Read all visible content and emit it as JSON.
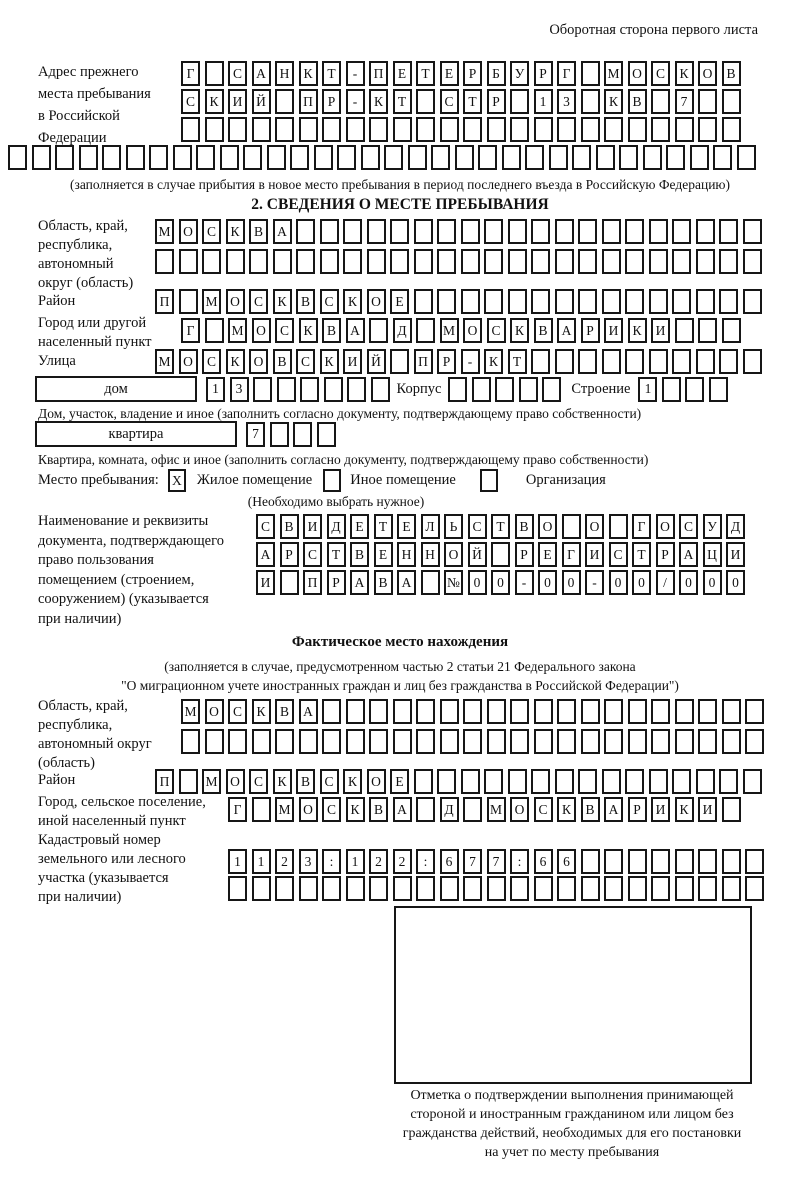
{
  "page_note": "Оборотная сторона первого листа",
  "prev_address": {
    "label": "Адрес прежнего\nместа пребывания\nв Российской\nФедерации",
    "row1": {
      "text": "Г САНКТ-ПЕТЕРБУРГ МОСКОВ",
      "len": 24
    },
    "row2": {
      "text": "СКИЙ ПР-КТ СТР 13 КВ 7",
      "len": 24
    },
    "row3": {
      "text": "",
      "len": 24
    },
    "row4": {
      "text": "",
      "len": 32
    },
    "note": "(заполняется в случае прибытия в новое место пребывания в период последнего въезда в Российскую Федерацию)"
  },
  "section2": {
    "title": "2. СВЕДЕНИЯ О МЕСТЕ ПРЕБЫВАНИЯ",
    "oblast": {
      "label": "Область, край,\nреспублика,\nавтономный\nокруг (область)",
      "row1": {
        "text": "МОСКВА",
        "len": 26
      },
      "row2": {
        "text": "",
        "len": 26
      }
    },
    "raion": {
      "label": "Район",
      "row": {
        "text": "П МОСКВСКОЕ",
        "len": 26
      }
    },
    "gorod": {
      "label": "Город или другой\nнаселенный пункт",
      "row": {
        "text": "Г МОСКВА Д МОСКВАРИКИ",
        "len": 24
      }
    },
    "ulitsa": {
      "label": "Улица",
      "row": {
        "text": "МОСКОВСКИЙ ПР-КТ",
        "len": 26
      }
    },
    "dom": {
      "label": "дом",
      "cells": {
        "text": "13",
        "len": 8
      },
      "korpus_label": "Корпус",
      "korpus_cells": {
        "text": "",
        "len": 5
      },
      "stroenie_label": "Строение",
      "stroenie_cells": {
        "text": "1",
        "len": 4
      },
      "note": "Дом, участок, владение и иное (заполнить согласно документу, подтверждающему право собственности)"
    },
    "kvartira": {
      "label": "квартира",
      "cells": {
        "text": "7",
        "len": 4
      },
      "note": "Квартира, комната, офис и иное (заполнить согласно документу, подтверждающему право собственности)"
    },
    "place_type": {
      "label": "Место пребывания:",
      "options": [
        {
          "label": "Жилое помещение",
          "checked": "X"
        },
        {
          "label": "Иное помещение",
          "checked": ""
        },
        {
          "label": "Организация",
          "checked": ""
        }
      ],
      "note": "(Необходимо выбрать нужное)"
    },
    "document": {
      "label": "Наименование и реквизиты\nдокумента, подтверждающего\nправо пользования\nпомещением (строением,\nсооружением) (указывается\nпри наличии)",
      "row1": {
        "text": "СВИДЕТЕЛЬСТВО О ГОСУД",
        "len": 21
      },
      "row2": {
        "text": "АРСТВЕННОЙ РЕГИСТРАЦИ",
        "len": 21
      },
      "row3": {
        "text": "И ПРАВА №00-00-00/000",
        "len": 21
      }
    }
  },
  "actual_location": {
    "title": "Фактическое место нахождения",
    "note": "(заполняется в случае, предусмотренном частью 2 статьи 21 Федерального закона\n\"О миграционном учете иностранных граждан и лиц без гражданства в Российской Федерации\")",
    "oblast": {
      "label": "Область, край,\nреспублика,\nавтономный округ\n(область)",
      "row1": {
        "text": "МОСКВА",
        "len": 25
      },
      "row2": {
        "text": "",
        "len": 25
      }
    },
    "raion": {
      "label": "Район",
      "row": {
        "text": "П МОСКВСКОЕ",
        "len": 26
      }
    },
    "gorod": {
      "label": "Город, сельское поселение,\nиной населенный пункт",
      "row": {
        "text": "Г МОСКВА Д МОСКВАРИКИ",
        "len": 22
      }
    },
    "kadastr": {
      "label": "Кадастровый номер\nземельного или лесного\nучастка (указывается\nпри наличии)",
      "row1": {
        "text": "1123:122:677:66",
        "len": 23
      },
      "row2": {
        "text": "",
        "len": 23
      }
    },
    "stamp_caption": "Отметка о подтверждении выполнения принимающей\nстороной и иностранным гражданином или лицом без\nгражданства действий, необходимых для его постановки\nна учет по месту пребывания"
  }
}
